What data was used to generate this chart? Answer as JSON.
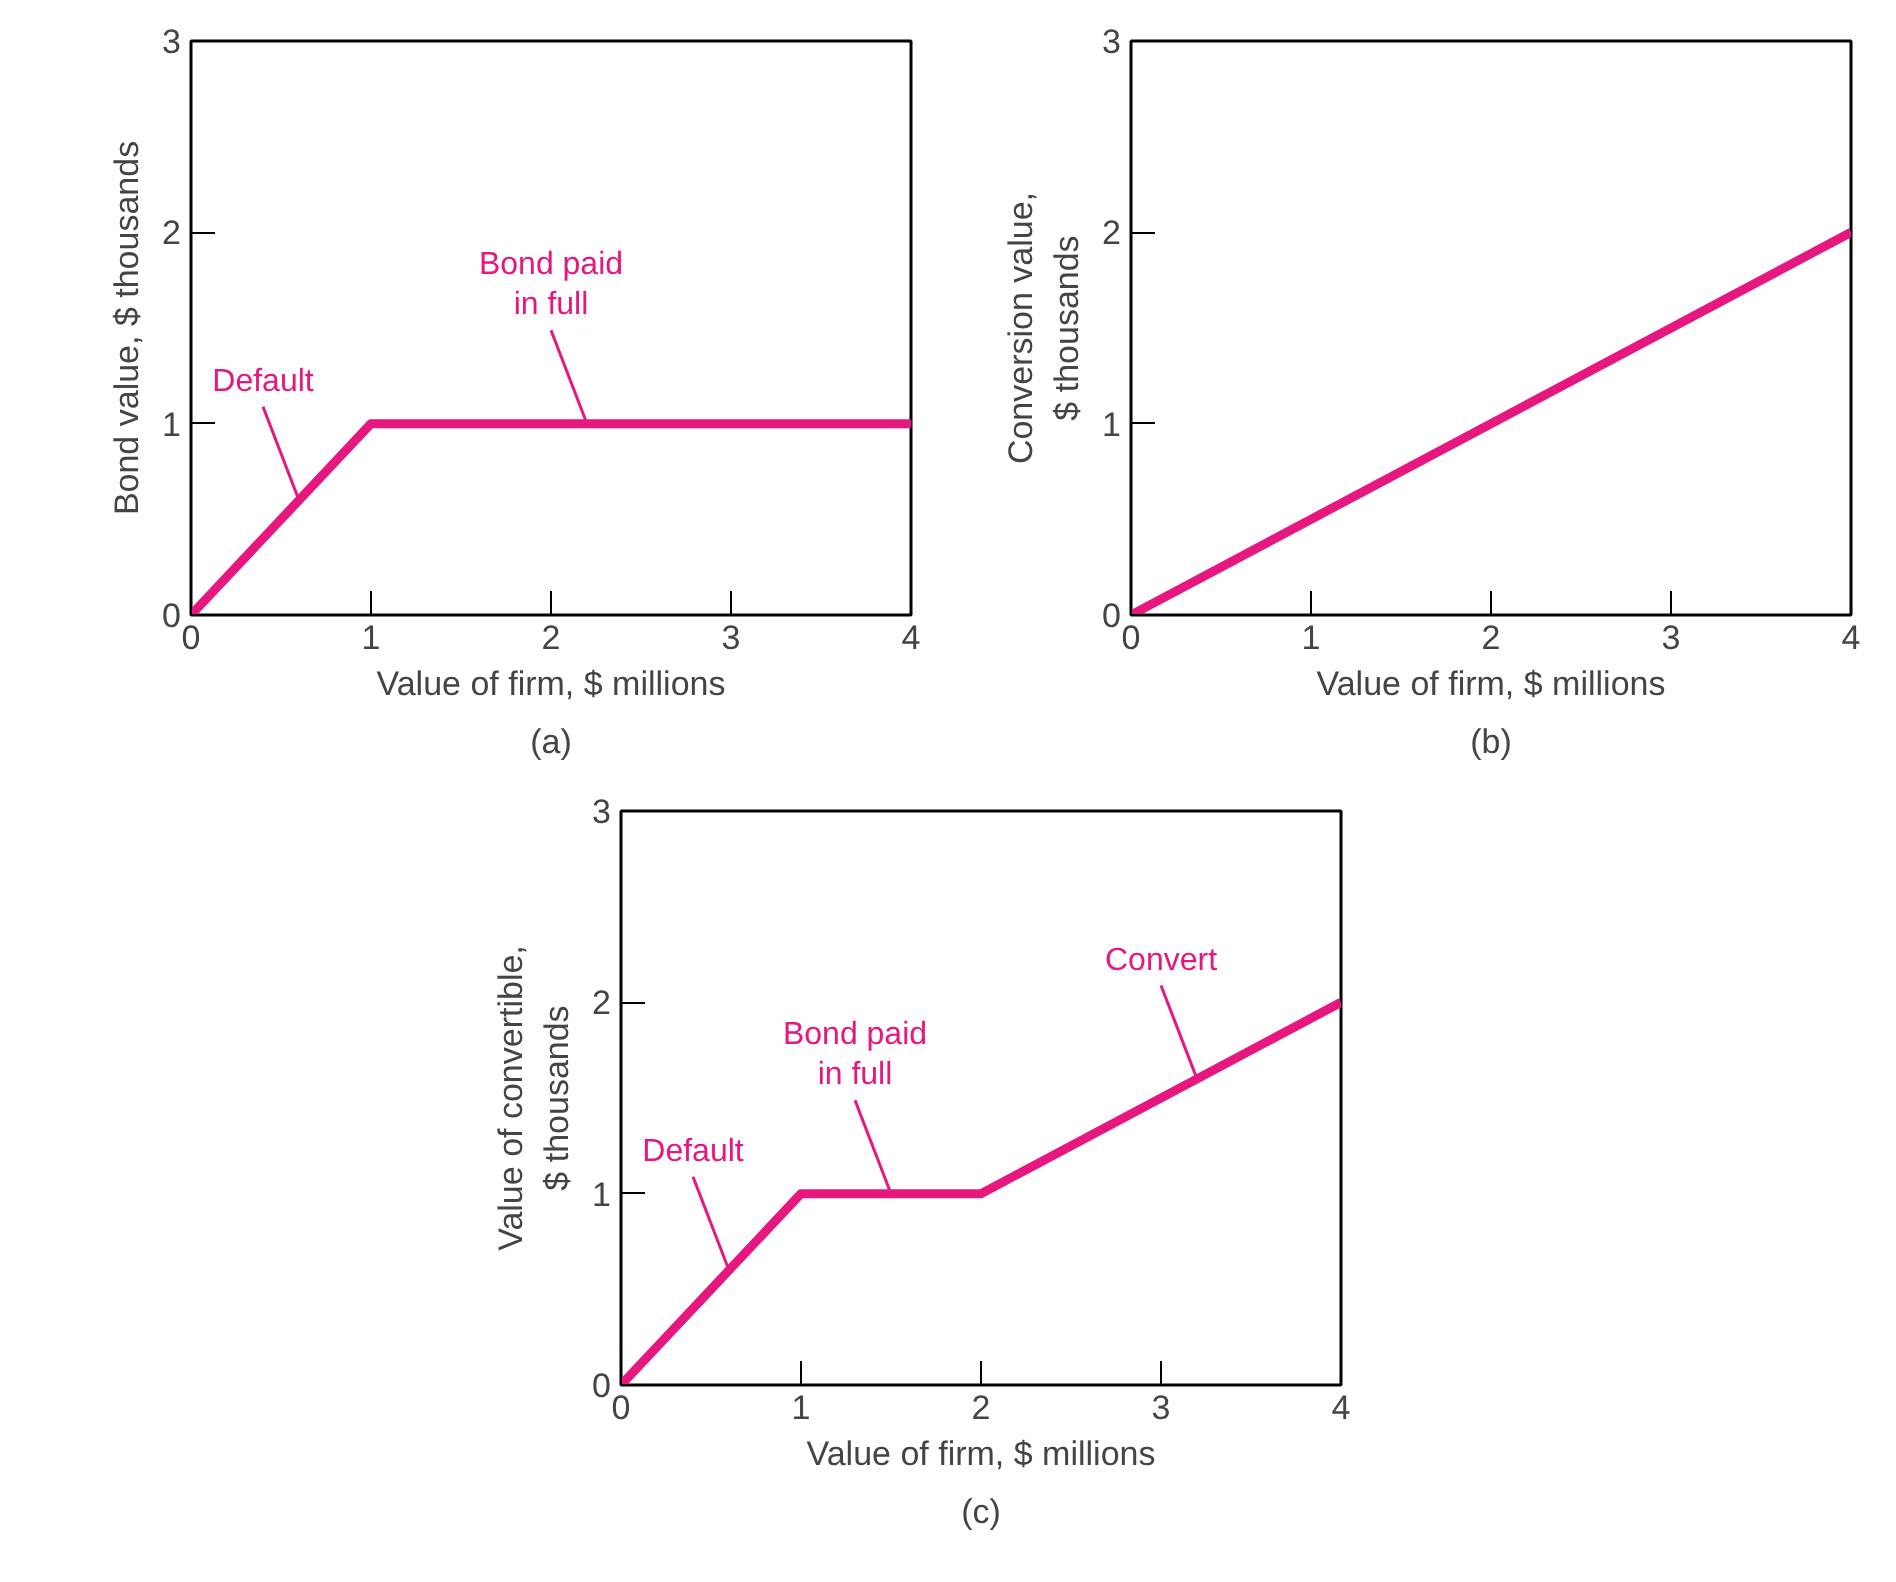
{
  "chart_data": [
    {
      "type": "line",
      "xlabel": "Value of firm, $ millions",
      "ylabel": "Bond value, $ thousands",
      "x": [
        0,
        1,
        4
      ],
      "values": [
        0,
        1,
        1
      ],
      "color": "#e6177f",
      "xlim": [
        0,
        4
      ],
      "ylim": [
        0,
        3
      ],
      "xticks": [
        0,
        1,
        2,
        3,
        4
      ],
      "yticks": [
        0,
        1,
        2,
        3
      ],
      "grid": false,
      "marker": "none",
      "line_style": "solid",
      "annotations": [
        {
          "text": "Default",
          "x": 0.6,
          "y": 0.6
        },
        {
          "text": "Bond paid\nin full",
          "x": 2.2,
          "y": 1
        },
        "(a)"
      ]
    },
    {
      "type": "line",
      "xlabel": "Value of firm, $ millions",
      "ylabel": "Conversion value,\n$ thousands",
      "x": [
        0,
        4
      ],
      "values": [
        0,
        2
      ],
      "color": "#e6177f",
      "xlim": [
        0,
        4
      ],
      "ylim": [
        0,
        3
      ],
      "xticks": [
        0,
        1,
        2,
        3,
        4
      ],
      "yticks": [
        0,
        1,
        2,
        3
      ],
      "grid": false,
      "marker": "none",
      "line_style": "solid",
      "annotations": [
        "(b)"
      ]
    },
    {
      "type": "line",
      "xlabel": "Value of firm, $ millions",
      "ylabel": "Value of convertible,\n$ thousands",
      "x": [
        0,
        1,
        2,
        4
      ],
      "values": [
        0,
        1,
        1,
        2
      ],
      "color": "#e6177f",
      "xlim": [
        0,
        4
      ],
      "ylim": [
        0,
        3
      ],
      "xticks": [
        0,
        1,
        2,
        3,
        4
      ],
      "yticks": [
        0,
        1,
        2,
        3
      ],
      "grid": false,
      "marker": "none",
      "line_style": "solid",
      "annotations": [
        {
          "text": "Default",
          "x": 0.6,
          "y": 0.6
        },
        {
          "text": "Bond paid\nin full",
          "x": 1.5,
          "y": 1
        },
        {
          "text": "Convert",
          "x": 3.2,
          "y": 1.6
        },
        "(c)"
      ]
    }
  ]
}
